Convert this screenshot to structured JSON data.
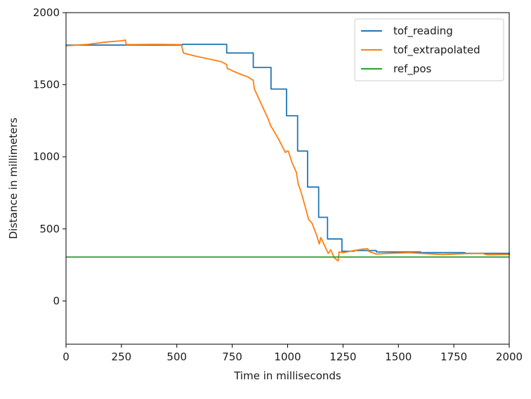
{
  "chart_data": {
    "type": "line",
    "title": "",
    "xlabel": "Time in milliseconds",
    "ylabel": "Distance in millimeters",
    "xlim": [
      0,
      2000
    ],
    "ylim": [
      -300,
      2000
    ],
    "xticks": [
      0,
      250,
      500,
      750,
      1000,
      1250,
      1500,
      1750,
      2000
    ],
    "yticks": [
      0,
      500,
      1000,
      1500,
      2000
    ],
    "grid": false,
    "legend_position": "upper right",
    "series": [
      {
        "name": "tof_reading",
        "color": "#1f77b4",
        "step": true,
        "x": [
          0,
          525,
          725,
          845,
          925,
          995,
          1045,
          1090,
          1140,
          1180,
          1245,
          1300,
          1400,
          1600,
          1800,
          2000
        ],
        "y": [
          1775,
          1780,
          1720,
          1620,
          1470,
          1285,
          1040,
          790,
          580,
          430,
          345,
          350,
          340,
          335,
          330,
          320
        ]
      },
      {
        "name": "tof_extrapolated",
        "color": "#ff7f0e",
        "step": false,
        "x": [
          0,
          100,
          175,
          250,
          268,
          272,
          400,
          520,
          530,
          580,
          640,
          700,
          725,
          728,
          740,
          760,
          800,
          820,
          845,
          850,
          880,
          910,
          925,
          930,
          960,
          990,
          998,
          1003,
          1020,
          1040,
          1048,
          1060,
          1080,
          1095,
          1110,
          1130,
          1143,
          1150,
          1165,
          1183,
          1195,
          1210,
          1228,
          1232,
          1250,
          1300,
          1340,
          1362,
          1365,
          1400,
          1450,
          1550,
          1600,
          1700,
          1800,
          1880,
          1900,
          2000
        ],
        "y": [
          1770,
          1780,
          1795,
          1805,
          1810,
          1778,
          1780,
          1778,
          1720,
          1700,
          1680,
          1660,
          1640,
          1612,
          1605,
          1590,
          1565,
          1555,
          1530,
          1470,
          1370,
          1270,
          1210,
          1200,
          1120,
          1030,
          1040,
          1040,
          960,
          890,
          810,
          760,
          650,
          565,
          540,
          460,
          395,
          440,
          390,
          330,
          355,
          300,
          278,
          340,
          335,
          350,
          360,
          362,
          345,
          325,
          330,
          335,
          330,
          322,
          328,
          330,
          320,
          322
        ]
      },
      {
        "name": "ref_pos",
        "color": "#2ca02c",
        "step": false,
        "x": [
          0,
          2000
        ],
        "y": [
          305,
          305
        ]
      }
    ]
  }
}
